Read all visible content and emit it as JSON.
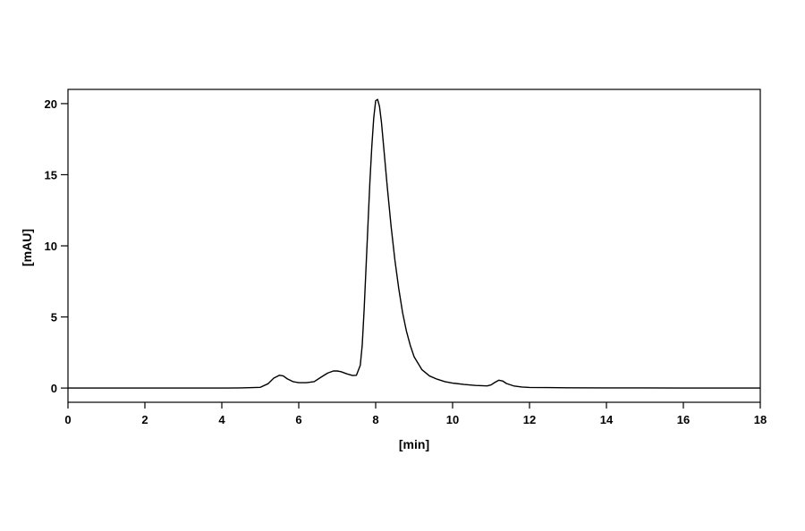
{
  "chart_data": {
    "type": "line",
    "xlabel": "[min]",
    "ylabel": "[mAU]",
    "xlim": [
      0,
      18
    ],
    "ylim": [
      -1,
      21
    ],
    "x_ticks": [
      0,
      2,
      4,
      6,
      8,
      10,
      12,
      14,
      16,
      18
    ],
    "y_ticks": [
      0,
      5,
      10,
      15,
      20
    ],
    "grid": false,
    "line_color": "#000000",
    "series": [
      {
        "x": [
          0,
          1,
          2,
          3,
          4,
          4.5,
          5.0,
          5.2,
          5.35,
          5.5,
          5.6,
          5.7,
          5.85,
          6.0,
          6.2,
          6.4,
          6.6,
          6.75,
          6.9,
          7.0,
          7.1,
          7.25,
          7.4,
          7.5,
          7.6,
          7.65,
          7.7,
          7.75,
          7.8,
          7.85,
          7.9,
          7.95,
          8.0,
          8.05,
          8.1,
          8.15,
          8.2,
          8.3,
          8.4,
          8.5,
          8.6,
          8.7,
          8.8,
          8.9,
          9.0,
          9.2,
          9.4,
          9.6,
          9.8,
          10.0,
          10.3,
          10.6,
          10.9,
          11.0,
          11.1,
          11.2,
          11.3,
          11.4,
          11.6,
          11.8,
          12.0,
          12.5,
          13,
          14,
          15,
          16,
          17,
          18
        ],
        "y": [
          0,
          0,
          0,
          0,
          0,
          0.01,
          0.05,
          0.3,
          0.7,
          0.9,
          0.85,
          0.65,
          0.45,
          0.38,
          0.38,
          0.45,
          0.8,
          1.05,
          1.2,
          1.2,
          1.15,
          1.0,
          0.88,
          0.9,
          1.6,
          3.0,
          5.5,
          8.5,
          11.5,
          14.5,
          17.0,
          19.0,
          20.2,
          20.3,
          19.8,
          18.7,
          17.2,
          14.2,
          11.4,
          9.0,
          7.0,
          5.3,
          4.0,
          3.0,
          2.2,
          1.3,
          0.85,
          0.62,
          0.45,
          0.35,
          0.25,
          0.18,
          0.15,
          0.22,
          0.4,
          0.55,
          0.5,
          0.32,
          0.14,
          0.07,
          0.04,
          0.03,
          0.02,
          0.01,
          0.01,
          0,
          0,
          0
        ]
      }
    ]
  }
}
